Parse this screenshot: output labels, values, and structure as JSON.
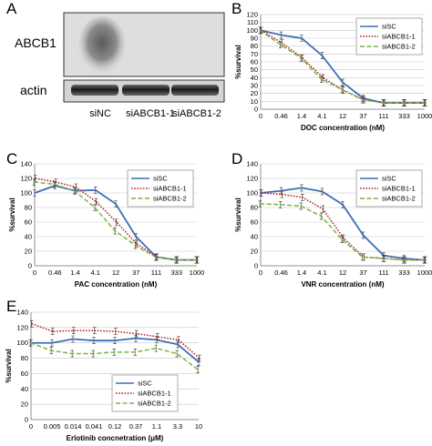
{
  "panels": {
    "A": {
      "letter": "A",
      "blot_rows": [
        "ABCB1",
        "actin"
      ],
      "lanes": [
        "siNC",
        "siABCB1-1",
        "siABCB1-2"
      ]
    }
  },
  "chart_data": [
    {
      "panel": "B",
      "type": "line",
      "xlabel": "DOC concentration (nM)",
      "ylabel": "%survival",
      "categories": [
        "0",
        "0.46",
        "1.4",
        "4.1",
        "12",
        "37",
        "111",
        "333",
        "1000"
      ],
      "ylim": [
        0,
        120
      ],
      "yticks": [
        0,
        10,
        20,
        30,
        40,
        50,
        60,
        70,
        80,
        90,
        100,
        110,
        120
      ],
      "grid": true,
      "legend": "top-right",
      "series": [
        {
          "name": "siSC",
          "values": [
            100,
            94,
            90,
            68,
            34,
            14,
            8,
            8,
            8
          ],
          "color": "#3c6fb8",
          "dash": "solid"
        },
        {
          "name": "siABCB1-1",
          "values": [
            100,
            84,
            65,
            40,
            24,
            12,
            8,
            8,
            8
          ],
          "color": "#b22222",
          "dash": "dotted"
        },
        {
          "name": "siABCB1-2",
          "values": [
            100,
            82,
            65,
            38,
            25,
            12,
            8,
            8,
            8
          ],
          "color": "#7cb342",
          "dash": "dashed"
        }
      ]
    },
    {
      "panel": "C",
      "type": "line",
      "xlabel": "PAC concentration (nM)",
      "ylabel": "%survival",
      "categories": [
        "0",
        "0.46",
        "1.4",
        "4.1",
        "12",
        "37",
        "111",
        "333",
        "1000"
      ],
      "ylim": [
        0,
        140
      ],
      "yticks": [
        0,
        20,
        40,
        60,
        80,
        100,
        120,
        140
      ],
      "grid": true,
      "legend": "top-right",
      "series": [
        {
          "name": "siSC",
          "values": [
            100,
            110,
            103,
            104,
            85,
            40,
            12,
            8,
            8
          ],
          "color": "#3c6fb8",
          "dash": "solid"
        },
        {
          "name": "siABCB1-1",
          "values": [
            120,
            115,
            108,
            88,
            60,
            30,
            12,
            8,
            8
          ],
          "color": "#b22222",
          "dash": "dotted"
        },
        {
          "name": "siABCB1-2",
          "values": [
            115,
            112,
            103,
            80,
            48,
            28,
            12,
            8,
            8
          ],
          "color": "#7cb342",
          "dash": "dashed"
        }
      ]
    },
    {
      "panel": "D",
      "type": "line",
      "xlabel": "VNR concentration (nM)",
      "ylabel": "%survival",
      "categories": [
        "0",
        "0.46",
        "1.4",
        "4.1",
        "12",
        "37",
        "111",
        "333",
        "1000"
      ],
      "ylim": [
        0,
        140
      ],
      "yticks": [
        0,
        20,
        40,
        60,
        80,
        100,
        120,
        140
      ],
      "grid": true,
      "legend": "top-right",
      "series": [
        {
          "name": "siSC",
          "values": [
            100,
            103,
            107,
            102,
            84,
            42,
            14,
            10,
            8
          ],
          "color": "#3c6fb8",
          "dash": "solid"
        },
        {
          "name": "siABCB1-1",
          "values": [
            100,
            98,
            94,
            78,
            38,
            12,
            10,
            8,
            8
          ],
          "color": "#b22222",
          "dash": "dotted"
        },
        {
          "name": "siABCB1-2",
          "values": [
            85,
            84,
            82,
            68,
            36,
            12,
            10,
            8,
            8
          ],
          "color": "#7cb342",
          "dash": "dashed"
        }
      ]
    },
    {
      "panel": "E",
      "type": "line",
      "xlabel": "Erlotinib concnetration (μM)",
      "ylabel": "%survival",
      "categories": [
        "0",
        "0.005",
        "0.014",
        "0.041",
        "0.12",
        "0.37",
        "1.1",
        "3.3",
        "10"
      ],
      "ylim": [
        0,
        140
      ],
      "yticks": [
        0,
        20,
        40,
        60,
        80,
        100,
        120,
        140
      ],
      "grid": true,
      "legend": "bottom-right",
      "series": [
        {
          "name": "siSC",
          "values": [
            100,
            100,
            105,
            103,
            103,
            106,
            104,
            98,
            75
          ],
          "color": "#3c6fb8",
          "dash": "solid"
        },
        {
          "name": "siABCB1-1",
          "values": [
            125,
            115,
            116,
            116,
            115,
            112,
            108,
            104,
            80
          ],
          "color": "#b22222",
          "dash": "dotted"
        },
        {
          "name": "siABCB1-2",
          "values": [
            100,
            90,
            86,
            86,
            88,
            88,
            93,
            86,
            65
          ],
          "color": "#7cb342",
          "dash": "dashed"
        }
      ]
    }
  ]
}
